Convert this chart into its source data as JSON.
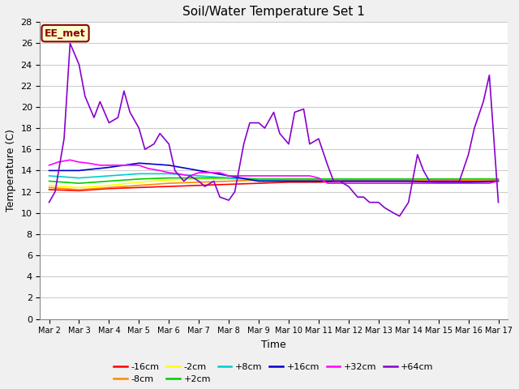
{
  "title": "Soil/Water Temperature Set 1",
  "xlabel": "Time",
  "ylabel": "Temperature (C)",
  "ylim": [
    0,
    28
  ],
  "yticks": [
    0,
    2,
    4,
    6,
    8,
    10,
    12,
    14,
    16,
    18,
    20,
    22,
    24,
    26,
    28
  ],
  "x_labels": [
    "Mar 2",
    "Mar 3",
    "Mar 4",
    "Mar 5",
    "Mar 6",
    "Mar 7",
    "Mar 8",
    "Mar 9",
    "Mar 10",
    "Mar 11",
    "Mar 12",
    "Mar 13",
    "Mar 14",
    "Mar 15",
    "Mar 16",
    "Mar 17"
  ],
  "fig_bg": "#f0f0f0",
  "plot_bg": "#ffffff",
  "annotation_text": "EE_met",
  "annotation_bg": "#ffffcc",
  "annotation_border": "#8B0000",
  "colors": {
    "-16cm": "#ff0000",
    "-8cm": "#ff8800",
    "-2cm": "#ffff00",
    "+2cm": "#00cc00",
    "+8cm": "#00cccc",
    "+16cm": "#0000cc",
    "+32cm": "#ff00ff",
    "+64cm": "#8800cc"
  },
  "series_slow": {
    "-16cm": [
      12.2,
      12.1,
      12.3,
      12.4,
      12.5,
      12.6,
      12.7,
      12.8,
      12.9,
      12.9,
      13.0,
      13.0,
      13.0,
      13.0,
      13.0,
      13.1
    ],
    "-8cm": [
      12.4,
      12.2,
      12.4,
      12.6,
      12.8,
      12.9,
      13.0,
      13.1,
      13.1,
      13.1,
      13.1,
      13.1,
      13.1,
      13.1,
      13.1,
      13.1
    ],
    "-2cm": [
      12.6,
      12.4,
      12.6,
      12.9,
      13.1,
      13.2,
      13.2,
      13.2,
      13.2,
      13.2,
      13.2,
      13.2,
      13.2,
      13.2,
      13.2,
      13.2
    ],
    "+2cm": [
      13.0,
      12.8,
      13.0,
      13.2,
      13.3,
      13.3,
      13.3,
      13.2,
      13.2,
      13.2,
      13.2,
      13.2,
      13.2,
      13.2,
      13.2,
      13.2
    ],
    "+8cm": [
      13.5,
      13.3,
      13.5,
      13.7,
      13.7,
      13.5,
      13.3,
      13.1,
      13.0,
      13.0,
      13.0,
      13.0,
      13.0,
      12.9,
      12.9,
      13.0
    ],
    "+16cm": [
      14.0,
      14.0,
      14.3,
      14.7,
      14.5,
      14.0,
      13.5,
      13.0,
      13.0,
      13.0,
      13.0,
      13.0,
      13.0,
      12.9,
      12.9,
      13.0
    ]
  },
  "series_32": [
    14.5,
    15.0,
    14.8,
    14.5,
    14.2,
    13.8,
    13.5,
    13.5,
    13.5,
    13.0,
    12.8,
    12.8,
    12.8,
    12.8,
    12.8,
    13.0
  ],
  "series_64_x": [
    0,
    0.2,
    0.5,
    0.7,
    1.0,
    1.2,
    1.5,
    1.7,
    2.0,
    2.3,
    2.5,
    2.7,
    3.0,
    3.2,
    3.5,
    3.7,
    4.0,
    4.2,
    4.5,
    4.7,
    5.0,
    5.2,
    5.5,
    5.7,
    6.0,
    6.2,
    6.5,
    6.7,
    7.0,
    7.2,
    7.5,
    7.7,
    8.0,
    8.2,
    8.5,
    8.7,
    9.0,
    9.3,
    9.5,
    9.7,
    10.0,
    10.3,
    10.5,
    10.7,
    11.0,
    11.2,
    11.5,
    11.7,
    12.0,
    12.3,
    12.5,
    12.7,
    13.0,
    13.2,
    13.5,
    13.7,
    14.0,
    14.2,
    14.5,
    14.7,
    15.0
  ],
  "series_64_y": [
    11.0,
    12.0,
    17.0,
    26.0,
    24.0,
    21.0,
    19.0,
    20.5,
    18.5,
    19.0,
    21.5,
    19.5,
    18.0,
    16.0,
    16.5,
    17.5,
    16.5,
    14.0,
    13.0,
    13.5,
    13.0,
    12.5,
    13.0,
    11.5,
    11.2,
    12.0,
    16.5,
    18.5,
    18.5,
    18.0,
    19.5,
    17.5,
    16.5,
    19.5,
    19.8,
    16.5,
    17.0,
    14.5,
    13.0,
    13.0,
    12.5,
    11.5,
    11.5,
    11.0,
    11.0,
    10.5,
    10.0,
    9.7,
    11.0,
    15.5,
    14.0,
    13.0,
    13.0,
    13.0,
    13.0,
    13.0,
    15.5,
    18.0,
    20.5,
    23.0,
    11.0
  ],
  "series_32_x": [
    0,
    0.3,
    0.7,
    1.0,
    1.3,
    1.7,
    2.0,
    2.3,
    2.7,
    3.0,
    3.3,
    3.7,
    4.0,
    4.3,
    4.7,
    5.0,
    5.3,
    5.7,
    6.0,
    6.3,
    6.7,
    7.0,
    7.3,
    7.7,
    8.0,
    8.3,
    8.7,
    9.0,
    9.3,
    9.7,
    10.0,
    10.3,
    10.7,
    11.0,
    11.3,
    11.7,
    12.0,
    12.3,
    12.7,
    13.0,
    13.3,
    13.7,
    14.0,
    14.3,
    14.7,
    15.0
  ],
  "series_32_y": [
    14.5,
    14.8,
    15.0,
    14.8,
    14.7,
    14.5,
    14.5,
    14.5,
    14.5,
    14.5,
    14.2,
    14.0,
    13.8,
    13.7,
    13.5,
    13.8,
    13.8,
    13.8,
    13.5,
    13.5,
    13.5,
    13.5,
    13.5,
    13.5,
    13.5,
    13.5,
    13.5,
    13.3,
    12.8,
    12.8,
    12.8,
    12.8,
    12.8,
    12.8,
    12.8,
    12.8,
    12.8,
    12.8,
    12.8,
    12.8,
    12.8,
    12.8,
    12.8,
    12.8,
    12.8,
    13.0
  ]
}
